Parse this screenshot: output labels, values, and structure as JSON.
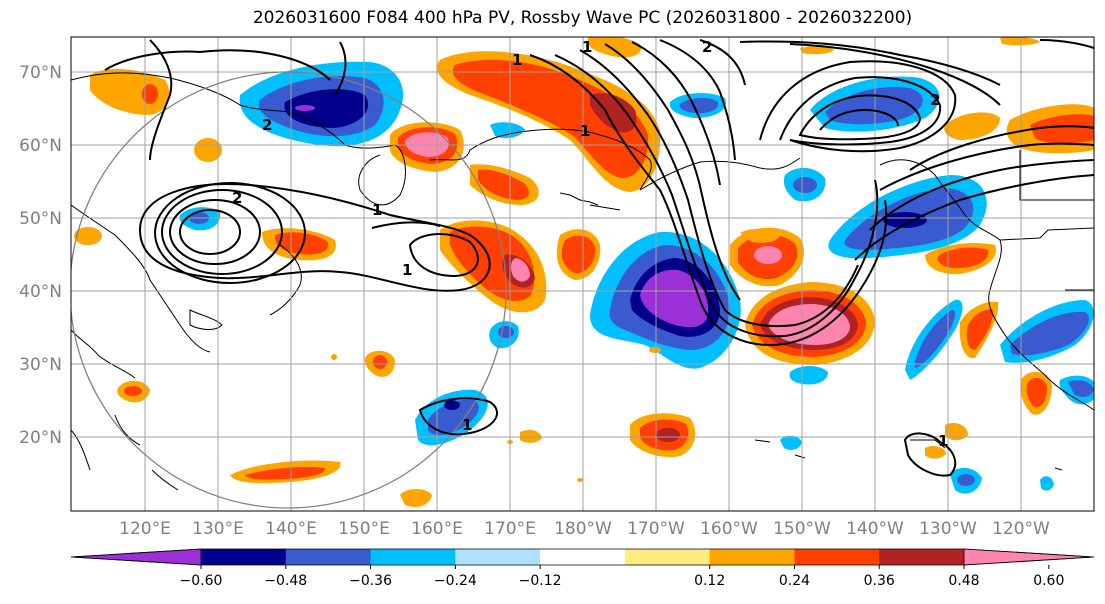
{
  "title": "2026031600 F084 400 hPa PV, Rossby Wave PC (2026031800 - 2026032200)",
  "lat_labels": [
    "70°N",
    "60°N",
    "50°N",
    "40°N",
    "30°N",
    "20°N"
  ],
  "lon_labels": [
    "120°E",
    "130°E",
    "140°E",
    "150°E",
    "160°E",
    "170°E",
    "180°W",
    "170°W",
    "160°W",
    "150°W",
    "140°W",
    "130°W",
    "120°W"
  ],
  "colorbar": {
    "ticks": [
      "−0.60",
      "−0.48",
      "−0.36",
      "−0.24",
      "−0.12",
      "0.12",
      "0.24",
      "0.36",
      "0.48",
      "0.60"
    ],
    "colors": [
      "#9b30d9",
      "#00008b",
      "#3a5bcf",
      "#00bfff",
      "#b0e0ff",
      "#ffffff",
      "#ffeb80",
      "#ffa500",
      "#ff4000",
      "#b22222",
      "#ff85b0"
    ]
  },
  "contour_labels": [
    "1",
    "1",
    "1",
    "2",
    "2",
    "2",
    "1",
    "1",
    "2",
    "1",
    "1"
  ],
  "colors": {
    "purple": "#9b30d9",
    "navy": "#00008b",
    "blue": "#3a5bcf",
    "sky": "#00bfff",
    "lightblue": "#b0e0ff",
    "yellow": "#ffeb80",
    "orange": "#ffa500",
    "redorange": "#ff4000",
    "darkred": "#b22222",
    "pink": "#ff85b0"
  }
}
